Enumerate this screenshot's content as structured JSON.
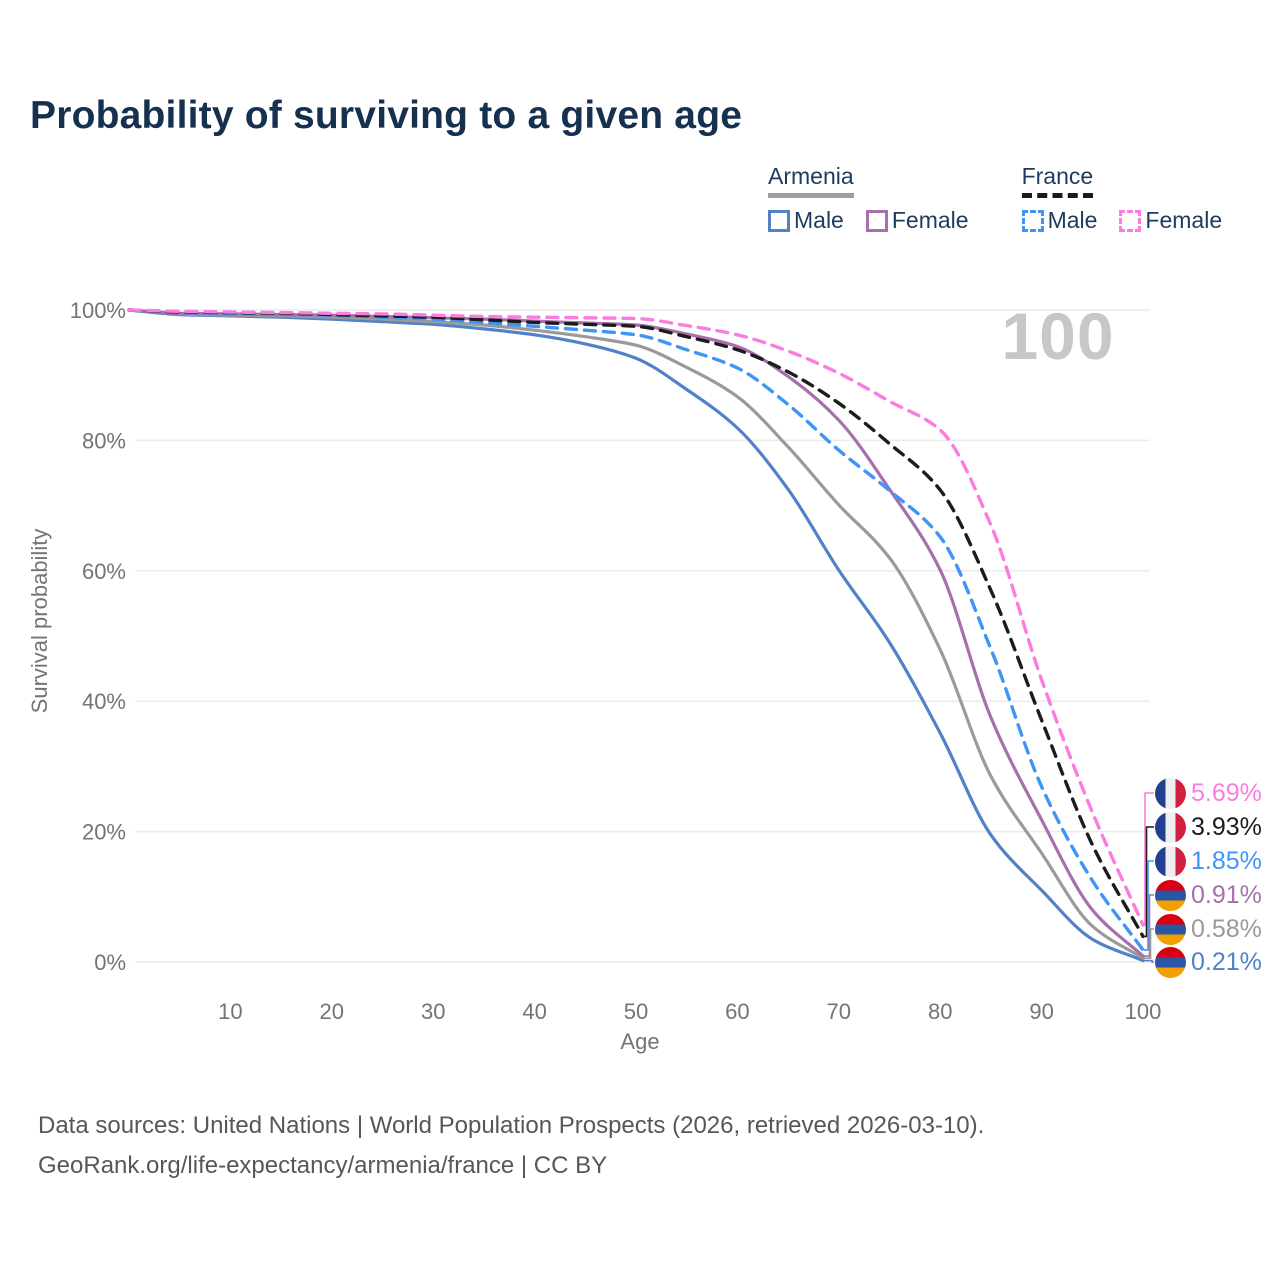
{
  "title": "Probability of surviving to a given age",
  "watermark": "100",
  "legend": {
    "groups": [
      {
        "name": "Armenia",
        "line_style": "solid",
        "underline_color": "#9e9e9e",
        "items": [
          {
            "label": "Male",
            "color": "#5181c6",
            "dashed": false
          },
          {
            "label": "Female",
            "color": "#a76fab",
            "dashed": false
          }
        ]
      },
      {
        "name": "France",
        "line_style": "dashed",
        "underline_color": "#1a1a1a",
        "items": [
          {
            "label": "Male",
            "color": "#3e95f7",
            "dashed": true
          },
          {
            "label": "Female",
            "color": "#fb7ce1",
            "dashed": true
          }
        ]
      }
    ]
  },
  "chart_data": {
    "type": "line",
    "xlabel": "Age",
    "ylabel": "Survival probability",
    "xlim": [
      0,
      100
    ],
    "ylim": [
      0,
      100
    ],
    "x_ticks": [
      10,
      20,
      30,
      40,
      50,
      60,
      70,
      80,
      90,
      100
    ],
    "y_ticks": [
      "0%",
      "20%",
      "40%",
      "60%",
      "80%",
      "100%"
    ],
    "grid": "horizontal",
    "x": [
      0,
      5,
      10,
      15,
      20,
      25,
      30,
      35,
      40,
      45,
      50,
      55,
      60,
      65,
      70,
      75,
      80,
      85,
      90,
      95,
      100
    ],
    "series": [
      {
        "name": "Armenia Male",
        "country": "armenia",
        "sex": "male",
        "color": "#5181c6",
        "dashed": false,
        "values": [
          100,
          99.3,
          99.1,
          98.9,
          98.6,
          98.2,
          97.8,
          97.1,
          96.2,
          94.8,
          92.6,
          87.8,
          81.9,
          72.5,
          60.1,
          49.0,
          35.1,
          19.5,
          11.0,
          3.5,
          0.21
        ]
      },
      {
        "name": "Armenia Total",
        "country": "armenia",
        "sex": "both",
        "color": "#9a9a9a",
        "dashed": false,
        "values": [
          100,
          99.4,
          99.2,
          99.1,
          98.9,
          98.6,
          98.2,
          97.7,
          96.9,
          95.9,
          94.6,
          91.2,
          86.7,
          79.0,
          70.1,
          62.0,
          47.9,
          28.5,
          16.7,
          5.5,
          0.58
        ]
      },
      {
        "name": "Armenia Female",
        "country": "armenia",
        "sex": "female",
        "color": "#a76fab",
        "dashed": false,
        "values": [
          100,
          99.5,
          99.4,
          99.3,
          99.2,
          99.0,
          98.8,
          98.6,
          98.3,
          98.0,
          97.7,
          96.3,
          94.4,
          89.8,
          83.1,
          72.5,
          60.1,
          37.5,
          21.8,
          8.0,
          0.91
        ]
      },
      {
        "name": "France Male",
        "country": "france",
        "sex": "male",
        "color": "#3e95f7",
        "dashed": true,
        "values": [
          100,
          99.6,
          99.5,
          99.4,
          99.2,
          98.9,
          98.6,
          98.1,
          97.5,
          96.9,
          96.2,
          93.9,
          91.1,
          85.5,
          78.5,
          72.3,
          65.2,
          48.0,
          26.9,
          12.5,
          1.85
        ]
      },
      {
        "name": "France Total",
        "country": "france",
        "sex": "both",
        "color": "#1c1c1c",
        "dashed": true,
        "values": [
          100,
          99.7,
          99.6,
          99.5,
          99.3,
          99.1,
          98.9,
          98.5,
          98.1,
          97.8,
          97.5,
          95.9,
          93.9,
          90.5,
          85.7,
          79.5,
          72.4,
          57.0,
          37.1,
          18.0,
          3.93
        ]
      },
      {
        "name": "France Female",
        "country": "france",
        "sex": "female",
        "color": "#fb7ce1",
        "dashed": true,
        "values": [
          100,
          99.8,
          99.7,
          99.6,
          99.5,
          99.4,
          99.2,
          99.0,
          98.9,
          98.8,
          98.7,
          97.6,
          96.2,
          93.7,
          90.3,
          86.0,
          81.6,
          67.0,
          43.3,
          23.0,
          5.69
        ]
      }
    ],
    "end_labels": [
      {
        "value": "5.69%",
        "series": "France Female",
        "color": "#fb7ce1",
        "flag": "france"
      },
      {
        "value": "3.93%",
        "series": "France Total",
        "color": "#1c1c1c",
        "flag": "france"
      },
      {
        "value": "1.85%",
        "series": "France Male",
        "color": "#3e95f7",
        "flag": "france"
      },
      {
        "value": "0.91%",
        "series": "Armenia Female",
        "color": "#a76fab",
        "flag": "armenia"
      },
      {
        "value": "0.58%",
        "series": "Armenia Total",
        "color": "#9a9a9a",
        "flag": "armenia"
      },
      {
        "value": "0.21%",
        "series": "Armenia Male",
        "color": "#5181c6",
        "flag": "armenia"
      }
    ]
  },
  "footer": {
    "line1": "Data sources: United Nations | World Population Prospects (2026, retrieved 2026-03-10).",
    "line2": "GeoRank.org/life-expectancy/armenia/france | CC BY"
  }
}
